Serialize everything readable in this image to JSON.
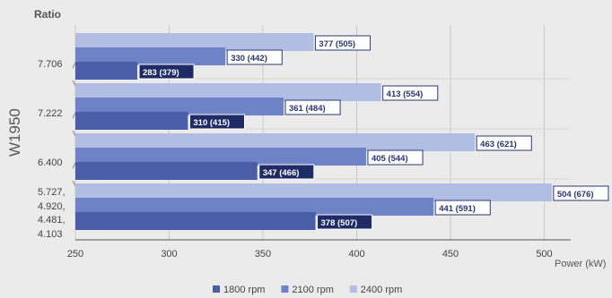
{
  "chart_data": {
    "type": "bar",
    "orientation": "horizontal",
    "y_title": "Ratio",
    "group_title": "W1950",
    "x_title": "Power (kW)",
    "xlim": [
      250,
      520
    ],
    "xticks": [
      "250",
      "300",
      "350",
      "400",
      "450",
      "500"
    ],
    "grid": "vertical",
    "legend_position": "bottom",
    "categories": [
      "7.706",
      "7.222",
      "6.400",
      "5.727, 4.920, 4.481, 4.103"
    ],
    "category_lines": [
      [
        "7.706"
      ],
      [
        "7.222"
      ],
      [
        "6.400"
      ],
      [
        "5.727,",
        "4.920,",
        "4.481,",
        "4.103"
      ]
    ],
    "series": [
      {
        "name": "1800 rpm",
        "color": "#4a5ea8",
        "values": [
          283,
          310,
          347,
          378
        ],
        "labels": [
          "283 (379)",
          "310 (415)",
          "347 (466)",
          "378 (507)"
        ]
      },
      {
        "name": "2100 rpm",
        "color": "#6e82c6",
        "values": [
          330,
          361,
          405,
          441
        ],
        "labels": [
          "330 (442)",
          "361 (484)",
          "405 (544)",
          "441 (591)"
        ]
      },
      {
        "name": "2400 rpm",
        "color": "#b2bde3",
        "values": [
          377,
          413,
          463,
          504
        ],
        "labels": [
          "377 (505)",
          "413 (554)",
          "463 (621)",
          "504 (676)"
        ]
      }
    ]
  }
}
